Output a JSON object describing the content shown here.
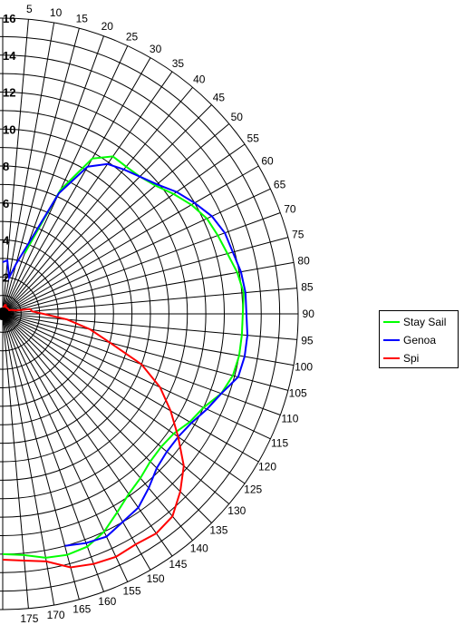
{
  "chart_data": {
    "type": "polar-line",
    "title": "",
    "angle_ticks": [
      "5",
      "10",
      "15",
      "20",
      "25",
      "30",
      "35",
      "40",
      "45",
      "50",
      "55",
      "60",
      "65",
      "70",
      "75",
      "80",
      "85",
      "90",
      "95",
      "100",
      "105",
      "110",
      "115",
      "120",
      "125",
      "130",
      "135",
      "140",
      "145",
      "150",
      "155",
      "160",
      "165",
      "170",
      "175"
    ],
    "radius_ticks": [
      "2",
      "4",
      "6",
      "8",
      "10",
      "12",
      "14",
      "16"
    ],
    "radius_range": [
      0,
      16
    ],
    "angle_step_degrees": 5,
    "legend_position": "right",
    "series": [
      {
        "name": "Stay Sail",
        "color": "#00ff00",
        "points": [
          [
            20,
            3.5
          ],
          [
            25,
            7.4
          ],
          [
            30,
            9.7
          ],
          [
            35,
            10.4
          ],
          [
            40,
            10.4
          ],
          [
            45,
            10.5
          ],
          [
            50,
            10.8
          ],
          [
            55,
            11.3
          ],
          [
            60,
            11.8
          ],
          [
            65,
            12.2
          ],
          [
            70,
            12.4
          ],
          [
            75,
            12.6
          ],
          [
            80,
            12.9
          ],
          [
            85,
            13.1
          ],
          [
            90,
            13.0
          ],
          [
            95,
            13.0
          ],
          [
            100,
            13.0
          ],
          [
            105,
            12.9
          ],
          [
            110,
            12.6
          ],
          [
            115,
            12.0
          ],
          [
            120,
            11.7
          ],
          [
            125,
            11.3
          ],
          [
            130,
            11.2
          ],
          [
            135,
            11.3
          ],
          [
            140,
            11.6
          ],
          [
            145,
            11.9
          ],
          [
            150,
            12.4
          ],
          [
            155,
            13.0
          ],
          [
            160,
            13.4
          ],
          [
            165,
            13.5
          ],
          [
            170,
            13.4
          ],
          [
            175,
            13.1
          ],
          [
            180,
            13.0
          ]
        ]
      },
      {
        "name": "Genoa",
        "color": "#0000ff",
        "points": [
          [
            0,
            2.8
          ],
          [
            5,
            2.9
          ],
          [
            10,
            2.0
          ],
          [
            15,
            2.8
          ],
          [
            20,
            4.0
          ],
          [
            25,
            7.2
          ],
          [
            30,
            9.2
          ],
          [
            35,
            9.9
          ],
          [
            40,
            10.2
          ],
          [
            45,
            10.5
          ],
          [
            50,
            10.9
          ],
          [
            55,
            11.5
          ],
          [
            60,
            12.0
          ],
          [
            65,
            12.5
          ],
          [
            70,
            12.8
          ],
          [
            75,
            12.9
          ],
          [
            80,
            13.1
          ],
          [
            85,
            13.2
          ],
          [
            90,
            13.2
          ],
          [
            95,
            13.3
          ],
          [
            100,
            13.3
          ],
          [
            105,
            13.2
          ],
          [
            110,
            12.6
          ],
          [
            115,
            12.2
          ],
          [
            120,
            11.8
          ],
          [
            125,
            11.6
          ],
          [
            130,
            11.6
          ],
          [
            135,
            11.8
          ],
          [
            140,
            12.3
          ],
          [
            145,
            12.8
          ],
          [
            150,
            13.0
          ],
          [
            155,
            13.3
          ],
          [
            160,
            13.2
          ],
          [
            165,
            13.0
          ]
        ]
      },
      {
        "name": "Spi",
        "color": "#ff0000",
        "points": [
          [
            5,
            0.3
          ],
          [
            10,
            0.4
          ],
          [
            15,
            0.5
          ],
          [
            20,
            0.5
          ],
          [
            25,
            0.4
          ],
          [
            30,
            0.4
          ],
          [
            35,
            0.4
          ],
          [
            40,
            0.4
          ],
          [
            45,
            0.4
          ],
          [
            50,
            0.4
          ],
          [
            55,
            0.4
          ],
          [
            60,
            0.4
          ],
          [
            65,
            0.5
          ],
          [
            70,
            0.6
          ],
          [
            75,
            0.7
          ],
          [
            80,
            1.5
          ],
          [
            85,
            1.6
          ],
          [
            90,
            2.2
          ],
          [
            95,
            3.5
          ],
          [
            100,
            4.8
          ],
          [
            105,
            6.0
          ],
          [
            110,
            8.0
          ],
          [
            115,
            9.4
          ],
          [
            120,
            10.5
          ],
          [
            125,
            11.6
          ],
          [
            130,
            12.8
          ],
          [
            135,
            13.6
          ],
          [
            140,
            14.3
          ],
          [
            145,
            14.5
          ],
          [
            150,
            14.4
          ],
          [
            155,
            14.5
          ],
          [
            160,
            14.4
          ],
          [
            165,
            14.2
          ],
          [
            170,
            13.6
          ],
          [
            175,
            13.4
          ],
          [
            180,
            13.3
          ]
        ]
      }
    ]
  }
}
